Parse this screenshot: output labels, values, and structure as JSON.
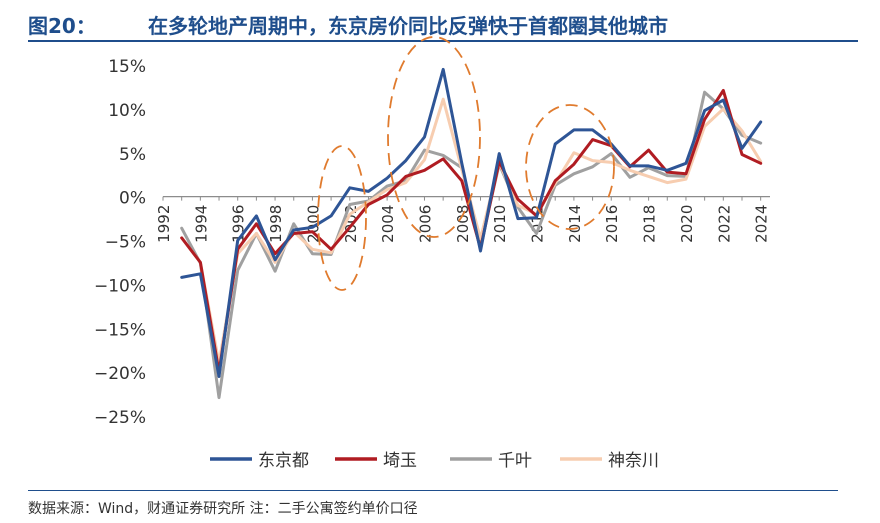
{
  "header": {
    "figure_label": "图20：",
    "title": "在多轮地产周期中，东京房价同比反弹快于首都圈其他城市"
  },
  "footer": {
    "source": "数据来源：Wind，财通证券研究所 注：二手公寓签约单价口径"
  },
  "chart_data": {
    "type": "line",
    "x": [
      1993,
      1994,
      1995,
      1996,
      1997,
      1998,
      1999,
      2000,
      2001,
      2002,
      2003,
      2004,
      2005,
      2006,
      2007,
      2008,
      2009,
      2010,
      2011,
      2012,
      2013,
      2014,
      2015,
      2016,
      2017,
      2018,
      2019,
      2020,
      2021,
      2022,
      2023,
      2024
    ],
    "x_ticks": [
      1992,
      1994,
      1996,
      1998,
      2000,
      2002,
      2004,
      2006,
      2008,
      2010,
      2012,
      2014,
      2016,
      2018,
      2020,
      2022,
      2024
    ],
    "xlim": [
      1992,
      2024.5
    ],
    "ylim": [
      -25,
      15
    ],
    "y_ticks": [
      15,
      10,
      5,
      0,
      -5,
      -10,
      -15,
      -20,
      -25
    ],
    "y_tick_labels": [
      "15%",
      "10%",
      "5%",
      "0%",
      "−5%",
      "−10%",
      "−15%",
      "−20%",
      "−25%"
    ],
    "series": [
      {
        "name": "东京都",
        "color": "#2e5596",
        "values": [
          -9.2,
          -8.8,
          -20.5,
          -5.0,
          -2.2,
          -7.2,
          -3.8,
          -3.5,
          -2.2,
          1.0,
          0.6,
          2.1,
          4.1,
          6.8,
          14.5,
          3.8,
          -6.2,
          4.9,
          -2.5,
          -2.4,
          6.0,
          7.6,
          7.6,
          6.0,
          3.5,
          3.5,
          3.0,
          3.8,
          9.8,
          11.0,
          5.5,
          8.5
        ]
      },
      {
        "name": "埼玉",
        "color": "#b01c22",
        "values": [
          -4.7,
          -7.5,
          -20.0,
          -6.0,
          -3.1,
          -6.5,
          -4.2,
          -4.0,
          -6.0,
          -3.5,
          -0.9,
          0.2,
          2.3,
          3.0,
          4.3,
          1.8,
          -5.9,
          4.0,
          -0.3,
          -2.2,
          1.8,
          3.7,
          6.5,
          5.8,
          3.4,
          5.3,
          2.8,
          2.6,
          8.8,
          12.1,
          4.8,
          3.8
        ]
      },
      {
        "name": "千叶",
        "color": "#a0a0a0",
        "values": [
          -3.6,
          -7.6,
          -22.9,
          -8.4,
          -4.2,
          -8.5,
          -3.1,
          -6.5,
          -6.6,
          -0.9,
          -0.5,
          1.2,
          1.8,
          5.3,
          4.7,
          3.3,
          -5.5,
          3.7,
          -1.2,
          -4.2,
          1.3,
          2.6,
          3.4,
          4.9,
          2.2,
          3.3,
          2.4,
          2.3,
          11.9,
          10.0,
          7.0,
          6.1
        ]
      },
      {
        "name": "神奈川",
        "color": "#f7cdb0",
        "values": [
          -4.7,
          -7.5,
          -19.0,
          -6.5,
          -4.2,
          -7.5,
          -4.0,
          -6.0,
          -6.4,
          -2.0,
          -0.6,
          0.8,
          1.6,
          4.2,
          11.1,
          3.1,
          -4.8,
          3.9,
          -1.0,
          -2.0,
          1.5,
          5.0,
          4.1,
          3.9,
          3.0,
          2.3,
          1.6,
          2.0,
          8.0,
          10.0,
          7.5,
          4.0
        ]
      }
    ],
    "annotations": "dashed orange ellipses highlighting 2001-2002, 2006-2008 and 2013-2015"
  }
}
